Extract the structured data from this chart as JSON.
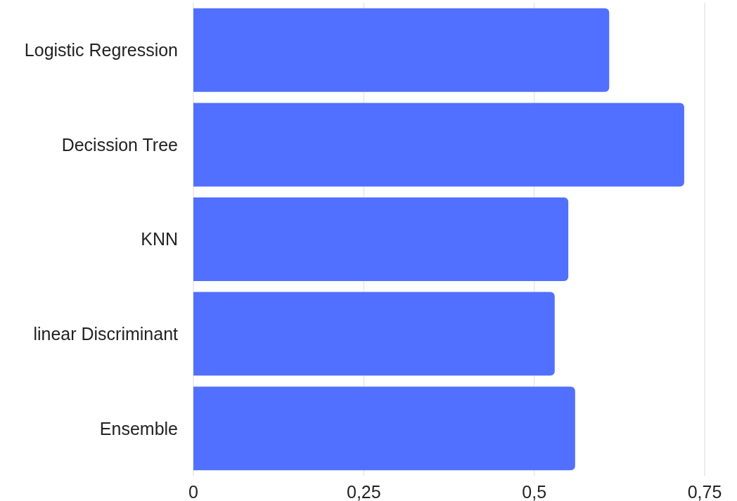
{
  "chart_data": {
    "type": "bar",
    "orientation": "horizontal",
    "categories": [
      "Logistic Regression",
      "Decission Tree",
      "KNN",
      "linear Discriminant",
      "Ensemble"
    ],
    "values": [
      0.61,
      0.72,
      0.55,
      0.53,
      0.56
    ],
    "color": "#5170ff",
    "xlim": [
      0,
      0.75
    ],
    "xticks": [
      0,
      {
        "value": 0.25,
        "label": "0,25"
      },
      {
        "value": 0.5,
        "label": "0,5"
      },
      {
        "value": 0.75,
        "label": "0,75"
      }
    ],
    "grid": "x"
  }
}
